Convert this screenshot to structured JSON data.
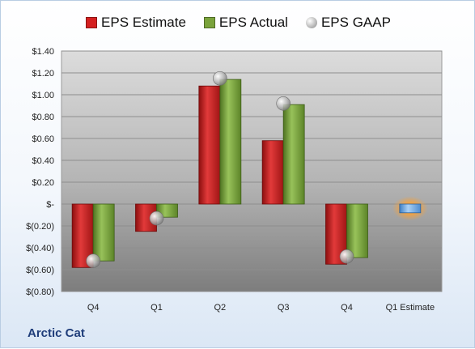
{
  "company": "Arctic Cat",
  "colors": {
    "estimate": "#d42020",
    "actual": "#7aa33b",
    "gaap": "#b8b8b8",
    "future": "#7fb5ea",
    "future_glow": "#f5a23c"
  },
  "chart_data": {
    "type": "bar",
    "categories": [
      "Q4",
      "Q1",
      "Q2",
      "Q3",
      "Q4",
      "Q1 Estimate"
    ],
    "series": [
      {
        "name": "EPS Estimate",
        "values": [
          -0.58,
          -0.25,
          1.08,
          0.58,
          -0.55,
          null
        ]
      },
      {
        "name": "EPS Actual",
        "values": [
          -0.52,
          -0.12,
          1.14,
          0.91,
          -0.49,
          -0.08
        ]
      },
      {
        "name": "EPS GAAP",
        "type": "scatter",
        "values": [
          -0.52,
          -0.13,
          1.15,
          0.92,
          -0.48,
          null
        ]
      }
    ],
    "yticks": [
      "$1.40",
      "$1.20",
      "$1.00",
      "$0.80",
      "$0.60",
      "$0.40",
      "$0.20",
      "$-",
      "$(0.20)",
      "$(0.40)",
      "$(0.60)",
      "$(0.80)"
    ],
    "ylim": [
      -0.8,
      1.4
    ],
    "legend_position": "top",
    "grid": true
  }
}
